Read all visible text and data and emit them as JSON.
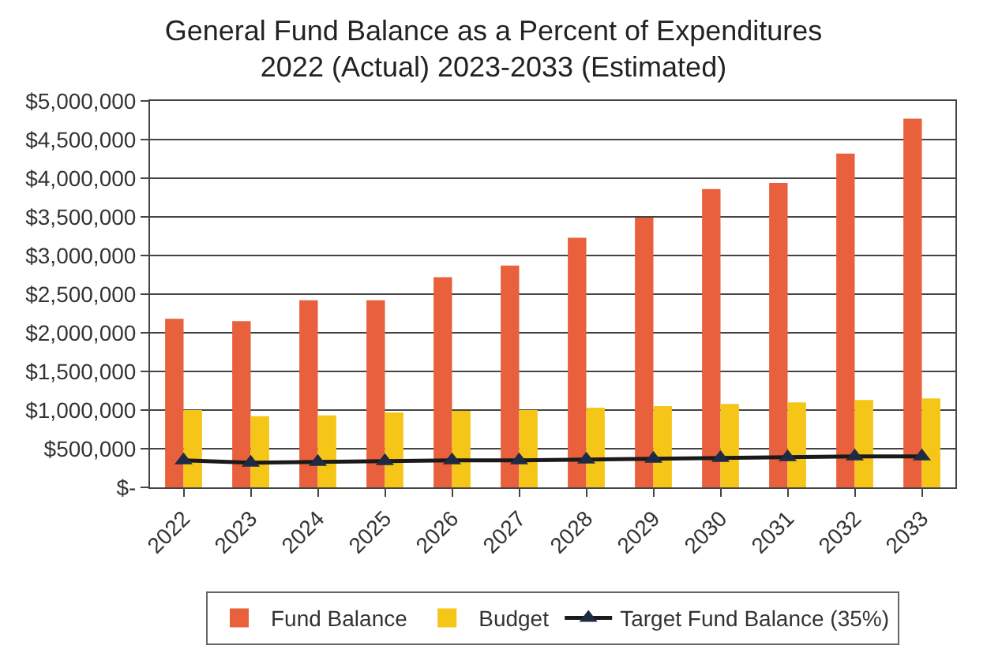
{
  "chart_data": {
    "type": "bar",
    "title": "General Fund Balance as a Percent of Expenditures\n2022 (Actual) 2023-2033 (Estimated)",
    "categories": [
      "2022",
      "2023",
      "2024",
      "2025",
      "2026",
      "2027",
      "2028",
      "2029",
      "2030",
      "2031",
      "2032",
      "2033"
    ],
    "series": [
      {
        "name": "Fund Balance",
        "color": "#e8603c",
        "values": [
          2180000,
          2150000,
          2420000,
          2420000,
          2720000,
          2870000,
          3230000,
          3490000,
          3860000,
          3940000,
          4320000,
          4770000
        ]
      },
      {
        "name": "Budget",
        "color": "#f5c518",
        "values": [
          1000000,
          920000,
          930000,
          970000,
          990000,
          1000000,
          1030000,
          1050000,
          1080000,
          1100000,
          1130000,
          1150000
        ]
      },
      {
        "name": "Target Fund Balance (35%)",
        "type": "line",
        "color": "#1a1a1a",
        "marker": "triangle",
        "values": [
          350000,
          320000,
          330000,
          340000,
          350000,
          350000,
          360000,
          370000,
          380000,
          390000,
          400000,
          400000
        ]
      }
    ],
    "ylim": [
      0,
      5000000
    ],
    "yticks": [
      {
        "value": 0,
        "label": "$-"
      },
      {
        "value": 500000,
        "label": "$500,000"
      },
      {
        "value": 1000000,
        "label": "$1,000,000"
      },
      {
        "value": 1500000,
        "label": "$1,500,000"
      },
      {
        "value": 2000000,
        "label": "$2,000,000"
      },
      {
        "value": 2500000,
        "label": "$2,500,000"
      },
      {
        "value": 3000000,
        "label": "$3,000,000"
      },
      {
        "value": 3500000,
        "label": "$3,500,000"
      },
      {
        "value": 4000000,
        "label": "$4,000,000"
      },
      {
        "value": 4500000,
        "label": "$4,500,000"
      },
      {
        "value": 5000000,
        "label": "$5,000,000"
      }
    ],
    "grid": "y",
    "legend": "bottom"
  }
}
